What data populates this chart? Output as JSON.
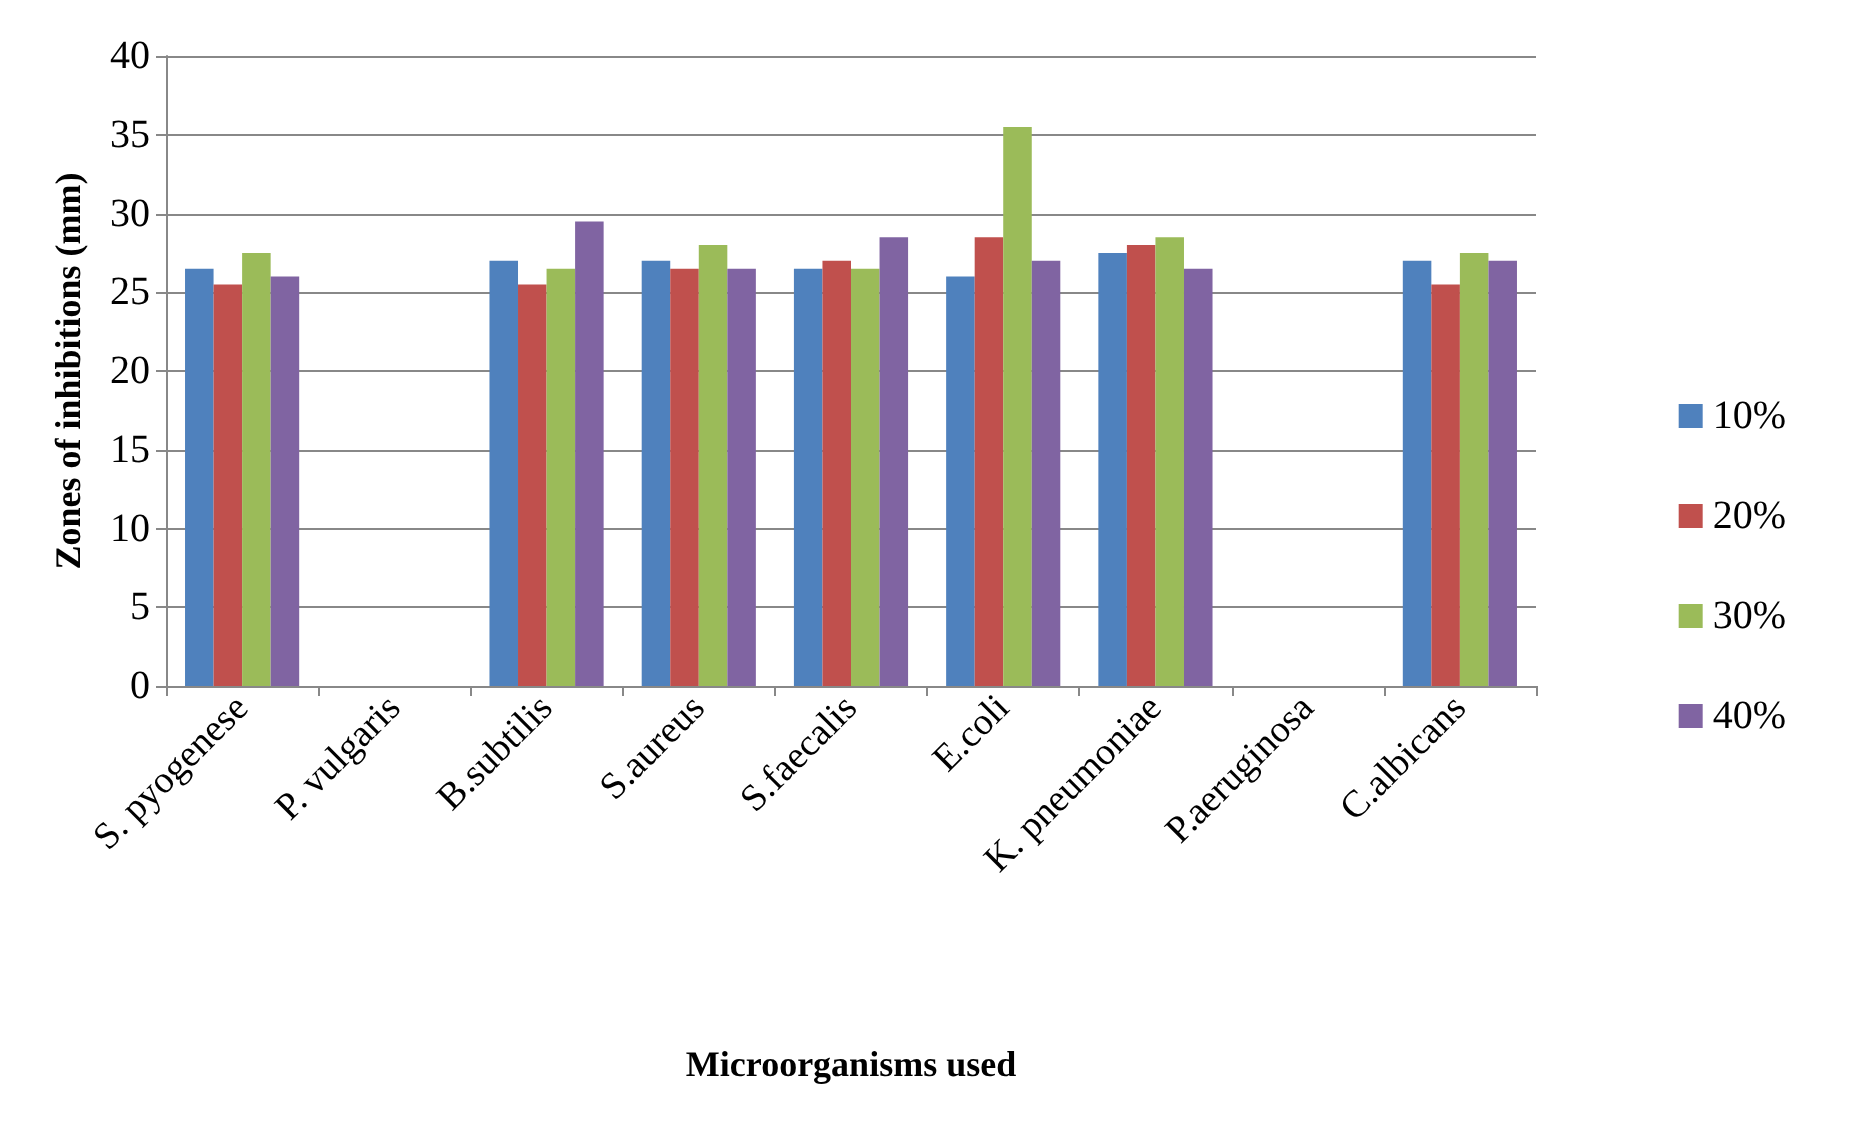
{
  "chart_data": {
    "type": "bar",
    "xlabel": "Microorganisms used",
    "ylabel": "Zones of inhibitions (mm)",
    "categories": [
      "S. pyogenese",
      "P. vulgaris",
      "B.subtilis",
      "S.aureus",
      "S.faecalis",
      "E.coli",
      "K. pneumoniae",
      "P.aeruginosa",
      "C.albicans"
    ],
    "series": [
      {
        "name": "10%",
        "color": "#4f81bd",
        "values": [
          26.5,
          0,
          27,
          27,
          26.5,
          26,
          27.5,
          0,
          27
        ]
      },
      {
        "name": "20%",
        "color": "#c0504d",
        "values": [
          25.5,
          0,
          25.5,
          26.5,
          27,
          28.5,
          28,
          0,
          25.5
        ]
      },
      {
        "name": "30%",
        "color": "#9bbb59",
        "values": [
          27.5,
          0,
          26.5,
          28,
          26.5,
          35.5,
          28.5,
          0,
          27.5
        ]
      },
      {
        "name": "40%",
        "color": "#8064a2",
        "values": [
          26,
          0,
          29.5,
          26.5,
          28.5,
          27,
          26.5,
          0,
          27
        ]
      }
    ],
    "ylim": [
      0,
      40
    ],
    "yticks": [
      0,
      5,
      10,
      15,
      20,
      25,
      30,
      35,
      40
    ],
    "grid": "y",
    "legend": "right"
  }
}
